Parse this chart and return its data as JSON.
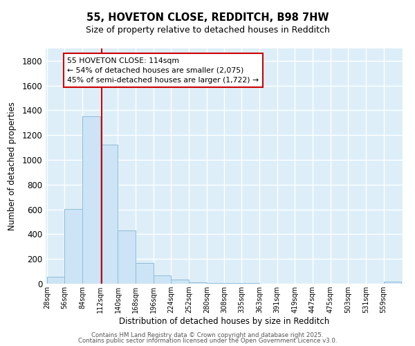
{
  "title1": "55, HOVETON CLOSE, REDDITCH, B98 7HW",
  "title2": "Size of property relative to detached houses in Redditch",
  "xlabel": "Distribution of detached houses by size in Redditch",
  "ylabel": "Number of detached properties",
  "bar_edges": [
    28,
    56,
    84,
    112,
    140,
    168,
    196,
    224,
    252,
    280,
    308,
    335,
    363,
    391,
    419,
    447,
    475,
    503,
    531,
    559,
    587
  ],
  "bar_heights": [
    55,
    605,
    1355,
    1125,
    430,
    170,
    68,
    35,
    10,
    8,
    5,
    3,
    2,
    1,
    1,
    0,
    0,
    0,
    0,
    15
  ],
  "bar_color": "#cce4f5",
  "bar_edge_color": "#90bcd8",
  "vline_x": 114,
  "vline_color": "#cc0000",
  "annotation_text": "55 HOVETON CLOSE: 114sqm\n← 54% of detached houses are smaller (2,075)\n45% of semi-detached houses are larger (1,722) →",
  "annotation_box_color": "#cc0000",
  "ylim": [
    0,
    1900
  ],
  "yticks": [
    0,
    200,
    400,
    600,
    800,
    1000,
    1200,
    1400,
    1600,
    1800
  ],
  "background_color": "#ddeef9",
  "grid_color": "#ffffff",
  "footer1": "Contains HM Land Registry data © Crown copyright and database right 2025.",
  "footer2": "Contains public sector information licensed under the Open Government Licence v3.0."
}
